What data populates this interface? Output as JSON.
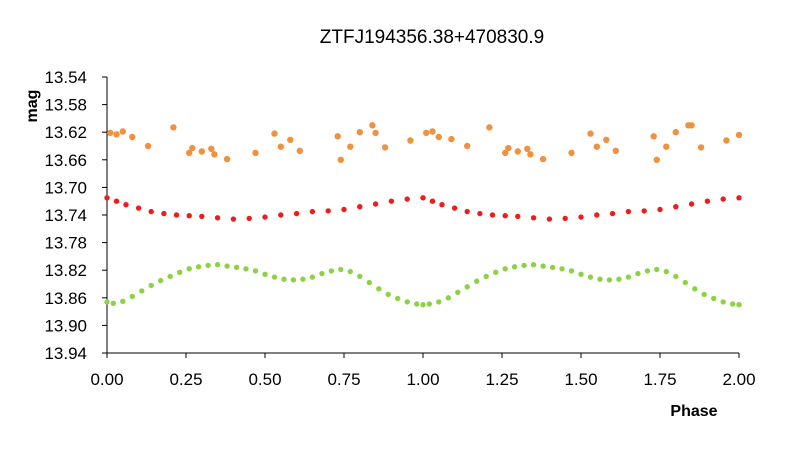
{
  "chart_data": {
    "type": "scatter",
    "title": "ZTFJ194356.38+470830.9",
    "xlabel": "Phase",
    "ylabel": "mag",
    "xlim": [
      0,
      2
    ],
    "ylim": [
      13.54,
      13.94
    ],
    "y_inverted": true,
    "grid": false,
    "legend": "none",
    "x_ticks": [
      "0.00",
      "0.25",
      "0.50",
      "0.75",
      "1.00",
      "1.25",
      "1.50",
      "1.75",
      "2.00"
    ],
    "y_ticks": [
      "13.54",
      "13.58",
      "13.62",
      "13.66",
      "13.70",
      "13.74",
      "13.78",
      "13.82",
      "13.86",
      "13.90",
      "13.94"
    ],
    "series": [
      {
        "color": "#f0913e",
        "x": [
          0.01,
          0.03,
          0.05,
          0.08,
          0.13,
          0.21,
          0.26,
          0.27,
          0.3,
          0.33,
          0.34,
          0.38,
          0.47,
          0.53,
          0.55,
          0.58,
          0.61,
          0.73,
          0.74,
          0.77,
          0.8,
          0.84,
          0.85,
          0.88,
          0.96,
          1.01,
          1.03,
          1.05,
          1.09,
          1.14,
          1.21,
          1.26,
          1.27,
          1.3,
          1.33,
          1.34,
          1.38,
          1.47,
          1.53,
          1.55,
          1.58,
          1.61,
          1.73,
          1.74,
          1.77,
          1.8,
          1.84,
          1.85,
          1.88,
          1.96,
          2.0
        ],
        "y": [
          13.621,
          13.623,
          13.619,
          13.627,
          13.64,
          13.613,
          13.65,
          13.643,
          13.648,
          13.644,
          13.652,
          13.659,
          13.65,
          13.622,
          13.641,
          13.631,
          13.647,
          13.626,
          13.66,
          13.641,
          13.62,
          13.61,
          13.621,
          13.642,
          13.632,
          13.621,
          13.619,
          13.627,
          13.63,
          13.64,
          13.613,
          13.65,
          13.643,
          13.648,
          13.644,
          13.652,
          13.659,
          13.65,
          13.622,
          13.641,
          13.631,
          13.647,
          13.626,
          13.66,
          13.641,
          13.62,
          13.61,
          13.61,
          13.642,
          13.632,
          13.624
        ]
      },
      {
        "color": "#ee1c1c",
        "x": [
          0.0,
          0.03,
          0.06,
          0.1,
          0.14,
          0.18,
          0.22,
          0.26,
          0.3,
          0.35,
          0.4,
          0.45,
          0.5,
          0.55,
          0.6,
          0.65,
          0.7,
          0.75,
          0.8,
          0.85,
          0.9,
          0.95,
          1.0,
          1.03,
          1.06,
          1.1,
          1.14,
          1.18,
          1.22,
          1.26,
          1.3,
          1.35,
          1.4,
          1.45,
          1.5,
          1.55,
          1.6,
          1.65,
          1.7,
          1.75,
          1.8,
          1.85,
          1.9,
          1.95,
          2.0
        ],
        "y": [
          13.715,
          13.72,
          13.725,
          13.73,
          13.735,
          13.738,
          13.74,
          13.741,
          13.742,
          13.744,
          13.746,
          13.745,
          13.743,
          13.74,
          13.738,
          13.735,
          13.734,
          13.732,
          13.728,
          13.724,
          13.72,
          13.717,
          13.715,
          13.72,
          13.725,
          13.73,
          13.735,
          13.738,
          13.74,
          13.741,
          13.742,
          13.744,
          13.746,
          13.745,
          13.743,
          13.74,
          13.738,
          13.735,
          13.734,
          13.732,
          13.728,
          13.724,
          13.72,
          13.717,
          13.715
        ]
      },
      {
        "color": "#8dd245",
        "x": [
          0.0,
          0.02,
          0.05,
          0.08,
          0.11,
          0.14,
          0.17,
          0.2,
          0.23,
          0.26,
          0.29,
          0.32,
          0.35,
          0.38,
          0.41,
          0.44,
          0.47,
          0.5,
          0.53,
          0.56,
          0.59,
          0.62,
          0.65,
          0.68,
          0.71,
          0.74,
          0.77,
          0.8,
          0.83,
          0.86,
          0.89,
          0.92,
          0.95,
          0.98,
          1.0,
          1.02,
          1.05,
          1.08,
          1.11,
          1.14,
          1.17,
          1.2,
          1.23,
          1.26,
          1.29,
          1.32,
          1.35,
          1.38,
          1.41,
          1.44,
          1.47,
          1.5,
          1.53,
          1.56,
          1.59,
          1.62,
          1.65,
          1.68,
          1.71,
          1.74,
          1.77,
          1.8,
          1.83,
          1.86,
          1.89,
          1.92,
          1.95,
          1.98,
          2.0
        ],
        "y": [
          13.866,
          13.868,
          13.865,
          13.858,
          13.85,
          13.842,
          13.835,
          13.829,
          13.823,
          13.818,
          13.815,
          13.813,
          13.812,
          13.814,
          13.816,
          13.818,
          13.821,
          13.826,
          13.83,
          13.833,
          13.834,
          13.833,
          13.83,
          13.825,
          13.821,
          13.819,
          13.822,
          13.829,
          13.838,
          13.847,
          13.855,
          13.861,
          13.866,
          13.869,
          13.87,
          13.869,
          13.866,
          13.86,
          13.852,
          13.844,
          13.836,
          13.829,
          13.823,
          13.818,
          13.815,
          13.813,
          13.812,
          13.814,
          13.816,
          13.818,
          13.821,
          13.826,
          13.83,
          13.833,
          13.834,
          13.833,
          13.83,
          13.825,
          13.821,
          13.819,
          13.822,
          13.829,
          13.838,
          13.847,
          13.855,
          13.861,
          13.866,
          13.869,
          13.87
        ]
      }
    ]
  }
}
